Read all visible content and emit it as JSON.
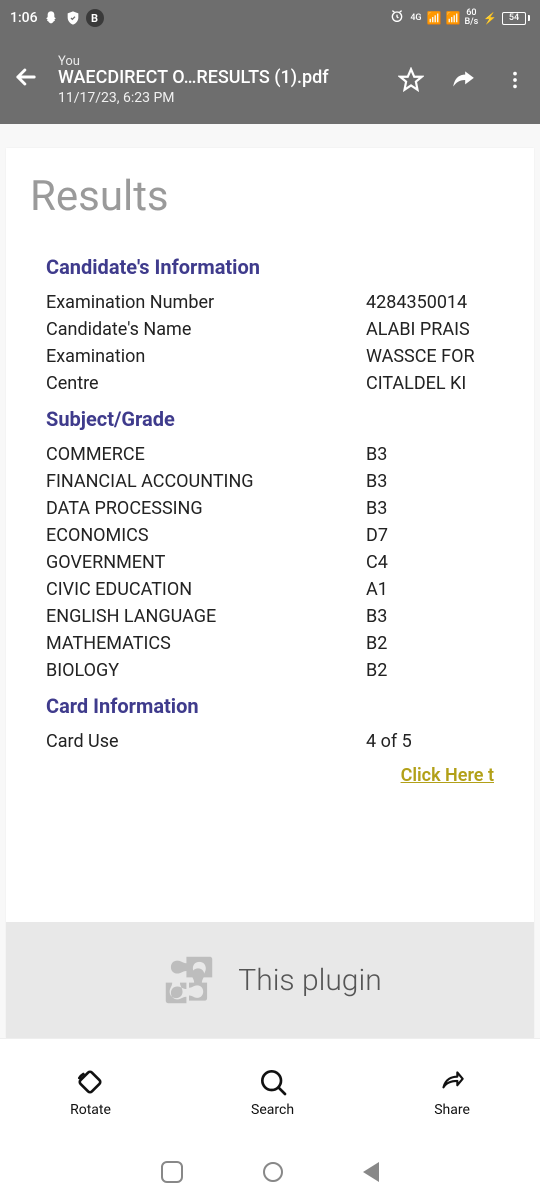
{
  "statusbar": {
    "time": "1:06",
    "net_label": "4G",
    "speed_top": "60",
    "speed_unit": "B/s",
    "battery": "54"
  },
  "header": {
    "sender": "You",
    "filename": "WAECDIRECT O…RESULTS (1).pdf",
    "datetime": "11/17/23, 6:23 PM"
  },
  "doc": {
    "title": "Results",
    "sections": {
      "candidate_head": "Candidate's Information",
      "subject_head": "Subject/Grade",
      "card_head": "Card Information"
    },
    "candidate": [
      {
        "label": "Examination Number",
        "value": "4284350014"
      },
      {
        "label": "Candidate's Name",
        "value": "ALABI PRAIS"
      },
      {
        "label": "Examination",
        "value": "WASSCE FOR"
      },
      {
        "label": "Centre",
        "value": "CITALDEL KI"
      }
    ],
    "subjects": [
      {
        "label": "COMMERCE",
        "value": "B3"
      },
      {
        "label": "FINANCIAL ACCOUNTING",
        "value": "B3"
      },
      {
        "label": "DATA PROCESSING",
        "value": "B3"
      },
      {
        "label": "ECONOMICS",
        "value": "D7"
      },
      {
        "label": "GOVERNMENT",
        "value": "C4"
      },
      {
        "label": "CIVIC EDUCATION",
        "value": "A1"
      },
      {
        "label": "ENGLISH LANGUAGE",
        "value": "B3"
      },
      {
        "label": "MATHEMATICS",
        "value": "B2"
      },
      {
        "label": "BIOLOGY",
        "value": "B2"
      }
    ],
    "card": [
      {
        "label": "Card Use",
        "value": "4 of 5"
      }
    ],
    "link": "Click Here t",
    "plugin_text": "This plugin"
  },
  "toolbar": {
    "rotate": "Rotate",
    "search": "Search",
    "share": "Share"
  }
}
